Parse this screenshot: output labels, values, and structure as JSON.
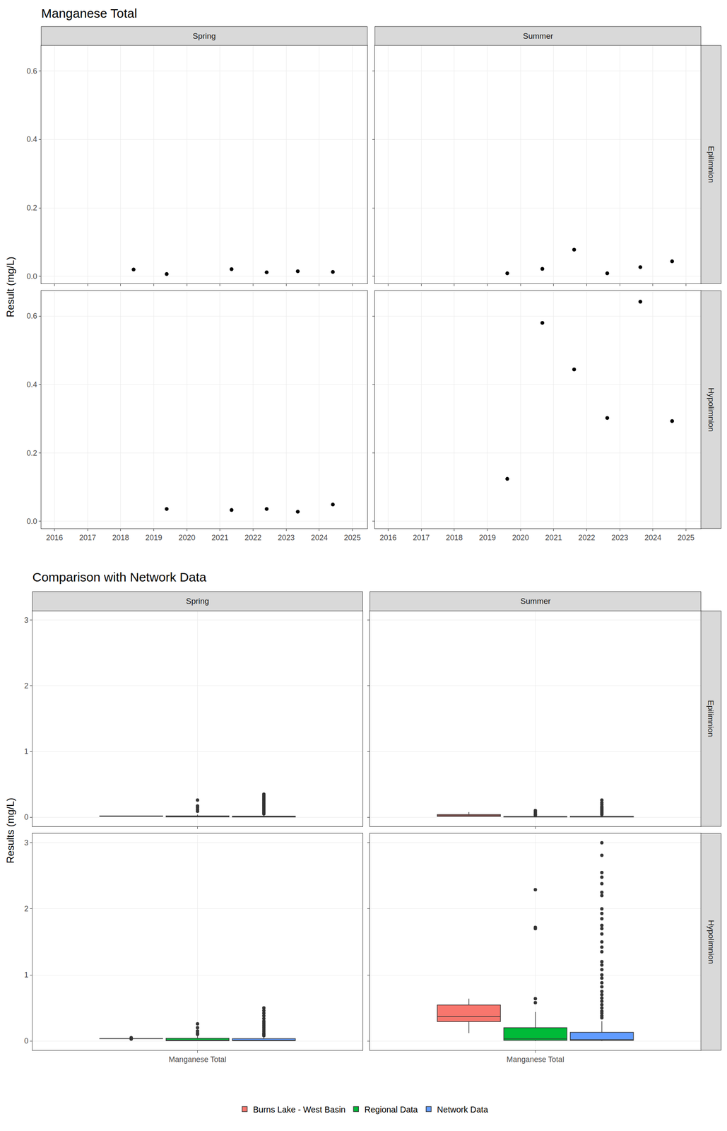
{
  "chart_data": [
    {
      "type": "scatter",
      "title": "Manganese Total",
      "y_label": "Result (mg/L)",
      "columns": [
        "Spring",
        "Summer"
      ],
      "rows": [
        "Epilimnion",
        "Hypolimnion"
      ],
      "color": "#000000",
      "grid": true,
      "xlim": [
        2015.6,
        2025.45
      ],
      "xticks": [
        2016,
        2017,
        2018,
        2019,
        2020,
        2021,
        2022,
        2023,
        2024,
        2025
      ],
      "ylim": [
        -0.021,
        0.674
      ],
      "yticks": [
        {
          "value": 0,
          "label": "0.0"
        },
        0.2,
        0.4,
        0.6
      ],
      "panels": [
        {
          "column": "Spring",
          "row": "Epilimnion",
          "x": [
            2018.39,
            2019.39,
            2021.35,
            2022.41,
            2023.35,
            2024.41
          ],
          "values": [
            0.02,
            0.007,
            0.021,
            0.012,
            0.015,
            0.013
          ]
        },
        {
          "column": "Summer",
          "row": "Epilimnion",
          "x": [
            2019.6,
            2020.66,
            2021.62,
            2022.62,
            2023.62,
            2024.58
          ],
          "values": [
            0.009,
            0.022,
            0.078,
            0.009,
            0.027,
            0.044
          ]
        },
        {
          "column": "Spring",
          "row": "Hypolimnion",
          "x": [
            2019.39,
            2021.35,
            2022.41,
            2023.35,
            2024.41
          ],
          "values": [
            0.036,
            0.033,
            0.036,
            0.028,
            0.049
          ]
        },
        {
          "column": "Summer",
          "row": "Hypolimnion",
          "x": [
            2019.6,
            2020.66,
            2021.62,
            2022.62,
            2023.62,
            2024.58
          ],
          "values": [
            0.124,
            0.58,
            0.444,
            0.302,
            0.642,
            0.293
          ]
        }
      ]
    },
    {
      "type": "box",
      "title": "Comparison with Network Data",
      "y_label": "Results (mg/L)",
      "columns": [
        "Spring",
        "Summer"
      ],
      "rows": [
        "Epilimnion",
        "Hypolimnion"
      ],
      "categories": [
        "Manganese Total"
      ],
      "grid": true,
      "legend": "bottom",
      "ylim": [
        -0.14,
        3.14
      ],
      "yticks": [
        0,
        1,
        2,
        3
      ],
      "series": [
        {
          "name": "Burns Lake - West Basin",
          "color": "#F8766D"
        },
        {
          "name": "Regional Data",
          "color": "#00BA38"
        },
        {
          "name": "Network Data",
          "color": "#619CFF"
        }
      ],
      "panels": [
        {
          "column": "Spring",
          "row": "Epilimnion",
          "boxes": [
            {
              "q1": 0.0123,
              "median": 0.014,
              "q3": 0.0188,
              "lower": 0.007,
              "upper": 0.021,
              "outliers": []
            },
            {
              "q1": 0.004,
              "median": 0.008,
              "q3": 0.018,
              "lower": 0,
              "upper": 0.04,
              "outliers": [
                0.09,
                0.12,
                0.15,
                0.17,
                0.26
              ]
            },
            {
              "q1": 0.003,
              "median": 0.007,
              "q3": 0.015,
              "lower": 0,
              "upper": 0.033,
              "outliers": [
                0.05,
                0.07,
                0.09,
                0.11,
                0.13,
                0.15,
                0.17,
                0.19,
                0.21,
                0.23,
                0.25,
                0.27,
                0.29,
                0.31,
                0.33,
                0.35
              ]
            }
          ]
        },
        {
          "column": "Summer",
          "row": "Epilimnion",
          "boxes": [
            {
              "q1": 0.0123,
              "median": 0.0245,
              "q3": 0.0398,
              "lower": 0.009,
              "upper": 0.078,
              "outliers": []
            },
            {
              "q1": 0.002,
              "median": 0.005,
              "q3": 0.01,
              "lower": 0,
              "upper": 0.02,
              "outliers": [
                0.03,
                0.04,
                0.06,
                0.08,
                0.1
              ]
            },
            {
              "q1": 0.002,
              "median": 0.005,
              "q3": 0.012,
              "lower": 0,
              "upper": 0.027,
              "outliers": [
                0.04,
                0.06,
                0.08,
                0.1,
                0.12,
                0.14,
                0.16,
                0.19,
                0.22,
                0.26
              ]
            }
          ]
        },
        {
          "column": "Spring",
          "row": "Hypolimnion",
          "boxes": [
            {
              "q1": 0.033,
              "median": 0.036,
              "q3": 0.036,
              "lower": 0.033,
              "upper": 0.036,
              "outliers": [
                0.028,
                0.049
              ]
            },
            {
              "q1": 0.005,
              "median": 0.015,
              "q3": 0.04,
              "lower": 0,
              "upper": 0.08,
              "outliers": [
                0.1,
                0.12,
                0.15,
                0.2,
                0.26
              ]
            },
            {
              "q1": 0.005,
              "median": 0.013,
              "q3": 0.035,
              "lower": 0,
              "upper": 0.075,
              "outliers": [
                0.08,
                0.1,
                0.12,
                0.15,
                0.18,
                0.21,
                0.24,
                0.27,
                0.3,
                0.34,
                0.38,
                0.42,
                0.46,
                0.5
              ]
            }
          ]
        },
        {
          "column": "Summer",
          "row": "Hypolimnion",
          "boxes": [
            {
              "q1": 0.2925,
              "median": 0.37,
              "q3": 0.545,
              "lower": 0.12,
              "upper": 0.64,
              "outliers": []
            },
            {
              "q1": 0.01,
              "median": 0.03,
              "q3": 0.2,
              "lower": 0,
              "upper": 0.44,
              "outliers": [
                0.58,
                0.64,
                1.7,
                1.72,
                2.29
              ]
            },
            {
              "q1": 0.01,
              "median": 0.02,
              "q3": 0.13,
              "lower": 0,
              "upper": 0.3,
              "outliers": [
                0.35,
                0.38,
                0.42,
                0.45,
                0.5,
                0.55,
                0.6,
                0.65,
                0.7,
                0.75,
                0.82,
                0.88,
                0.95,
                1.0,
                1.08,
                1.15,
                1.2,
                1.35,
                1.42,
                1.5,
                1.62,
                1.7,
                1.75,
                1.85,
                1.93,
                2.0,
                2.2,
                2.25,
                2.38,
                2.48,
                2.55,
                2.81,
                3.0
              ]
            }
          ]
        }
      ]
    }
  ]
}
